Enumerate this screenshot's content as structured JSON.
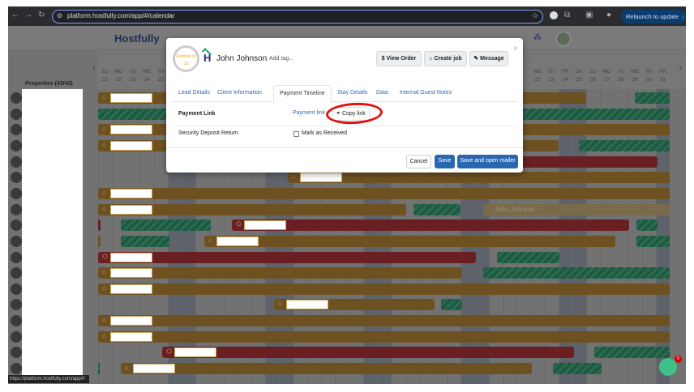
{
  "browser": {
    "url": "platform.hostfully.com/app/#/calendar",
    "relaunch_label": "Relaunch to update",
    "status_url": "https://platform.hostfully.com/app/#"
  },
  "app": {
    "logo": "Hostfully",
    "properties_label": "Properties (43/43)"
  },
  "calendar": {
    "left_days": [
      {
        "dow": "SU",
        "num": "21"
      },
      {
        "dow": "MO",
        "num": "22"
      },
      {
        "dow": "TU",
        "num": "23"
      },
      {
        "dow": "WE",
        "num": "24"
      },
      {
        "dow": "TH",
        "num": "25"
      }
    ],
    "right_days": [
      {
        "dow": "WE",
        "num": "22"
      },
      {
        "dow": "TH",
        "num": "23"
      },
      {
        "dow": "FR",
        "num": "24"
      },
      {
        "dow": "SA",
        "num": "25"
      },
      {
        "dow": "SU",
        "num": "26"
      },
      {
        "dow": "MO",
        "num": "27"
      },
      {
        "dow": "TU",
        "num": "28"
      },
      {
        "dow": "WE",
        "num": "29"
      },
      {
        "dow": "TH",
        "num": "30"
      },
      {
        "dow": "FR",
        "num": "31"
      }
    ],
    "ghost_booking": "John Johnson",
    "colors": {
      "direct": "#6d5121",
      "airbnb": "#6a1f23",
      "blocked": "#1d5a42"
    },
    "rows": [
      [
        [
          "direct",
          0,
          35,
          1
        ],
        [
          "blocked",
          38.5,
          41,
          0
        ]
      ],
      [
        [
          "blocked",
          0,
          41,
          0
        ]
      ],
      [
        [
          "direct",
          0,
          41,
          1
        ]
      ],
      [
        [
          "direct",
          0,
          33,
          1
        ],
        [
          "blocked",
          34.5,
          41,
          0
        ]
      ],
      [
        [
          "airbnb",
          15,
          40.1,
          0
        ]
      ],
      [
        [
          "direct",
          13.6,
          41,
          1
        ]
      ],
      [
        [
          "direct",
          0,
          41,
          1
        ]
      ],
      [
        [
          "direct",
          0,
          22.1,
          1
        ],
        [
          "blocked",
          22.6,
          26,
          0
        ],
        [
          "ghost",
          27.6,
          41,
          0
        ]
      ],
      [
        [
          "airbnb",
          0,
          0.15,
          0
        ],
        [
          "blocked",
          1.6,
          8.1,
          0
        ],
        [
          "airbnb",
          9.6,
          38.1,
          2
        ],
        [
          "blocked",
          38.6,
          40.1,
          0
        ]
      ],
      [
        [
          "direct",
          0,
          0.15,
          0
        ],
        [
          "blocked",
          1.6,
          5.1,
          0
        ],
        [
          "direct",
          7.6,
          37.1,
          1
        ],
        [
          "blocked",
          38.6,
          41,
          0
        ]
      ],
      [
        [
          "airbnb",
          0,
          27.1,
          2
        ],
        [
          "blocked",
          28.6,
          33.1,
          0
        ]
      ],
      [
        [
          "direct",
          0,
          26.1,
          1
        ],
        [
          "blocked",
          27.6,
          41,
          0
        ]
      ],
      [
        [
          "direct",
          0,
          41,
          1
        ]
      ],
      [
        [
          "direct",
          12.6,
          24.1,
          1
        ],
        [
          "blocked",
          24.6,
          26.1,
          0
        ]
      ],
      [
        [
          "direct",
          0,
          41,
          1
        ]
      ],
      [
        [
          "direct",
          0,
          41,
          1
        ]
      ],
      [
        [
          "airbnb",
          4.6,
          34.1,
          2
        ],
        [
          "blocked",
          35.6,
          41,
          0
        ]
      ],
      [
        [
          "blocked",
          0,
          0.1,
          0
        ],
        [
          "direct",
          1.6,
          31.1,
          1
        ],
        [
          "blocked",
          32.6,
          36.1,
          0
        ]
      ]
    ]
  },
  "modal": {
    "expiry": "Expires in 1d",
    "guest_name": "John Johnson",
    "add_tag": "Add tag...",
    "buttons": {
      "view_order": "View Order",
      "create_job": "Create job",
      "message": "Message"
    },
    "tabs": [
      "Lead Details",
      "Client Information",
      "Payment Timeline",
      "Stay Details",
      "Data",
      "Internal Guest Notes"
    ],
    "active_tab": "Payment Timeline",
    "payment_link_label": "Payment Link",
    "payment_link_text": "Payment link",
    "copy_link": "Copy link",
    "security_deposit_label": "Security Deposit Return",
    "mark_received": "Mark as Received",
    "mark_received_checked": false,
    "footer": {
      "cancel": "Cancel",
      "save": "Save",
      "save_mailer": "Save and open mailer"
    },
    "primary_color": "#2a67b1",
    "annotation_color": "#e3100f"
  },
  "chat": {
    "badge": "5"
  }
}
